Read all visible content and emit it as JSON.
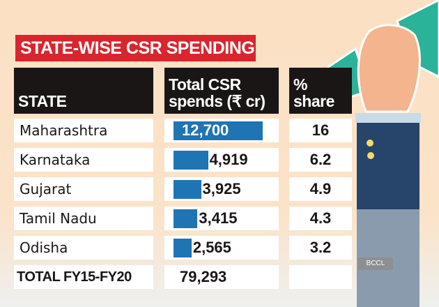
{
  "chart_data": {
    "type": "table",
    "title": "STATE-WISE CSR SPENDING",
    "columns": [
      "STATE",
      "Total CSR spends (₹ cr)",
      "% share"
    ],
    "rows": [
      {
        "state": "Maharashtra",
        "spend": 12700,
        "spend_label": "12,700",
        "share": "16"
      },
      {
        "state": "Karnataka",
        "spend": 4919,
        "spend_label": "4,919",
        "share": "6.2"
      },
      {
        "state": "Gujarat",
        "spend": 3925,
        "spend_label": "3,925",
        "share": "4.9"
      },
      {
        "state": "Tamil Nadu",
        "spend": 3415,
        "spend_label": "3,415",
        "share": "4.3"
      },
      {
        "state": "Odisha",
        "spend": 2565,
        "spend_label": "2,565",
        "share": "3.2"
      }
    ],
    "total": {
      "label": "TOTAL FY15-FY20",
      "spend": 79293,
      "spend_label": "79,293"
    },
    "bar_color": "#1f74b4"
  },
  "header": {
    "col1": "STATE",
    "col2_line1": "Total CSR",
    "col2_line2": "spends (₹ cr)",
    "col3_line1": "%",
    "col3_line2": "share"
  },
  "credit": "BCCL"
}
